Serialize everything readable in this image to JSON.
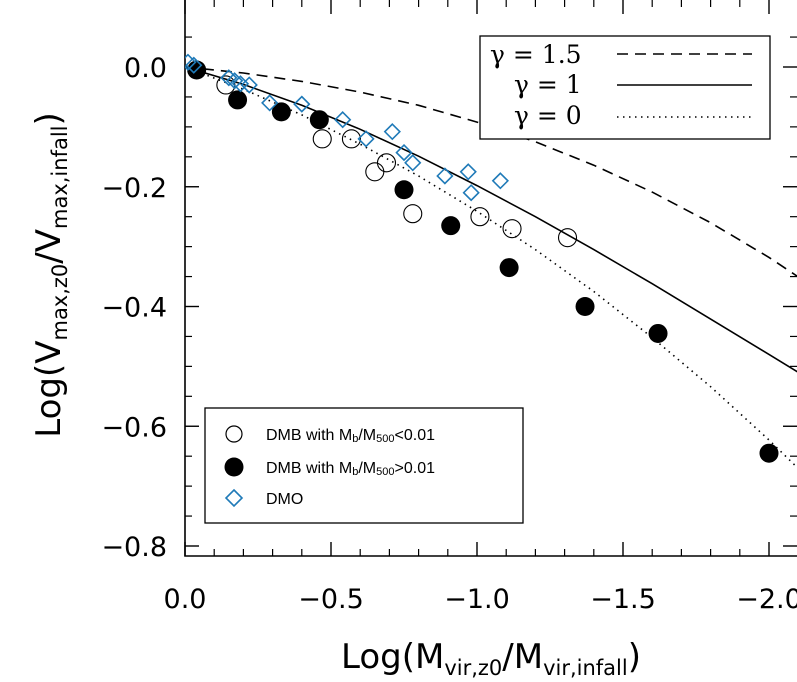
{
  "chart_data": {
    "type": "scatter",
    "xlabel": {
      "main": "Log(M",
      "sub1": "vir,z0",
      "mid": "/M",
      "sub2": "vir,infall",
      "end": ")"
    },
    "ylabel": {
      "main": "Log(V",
      "sub1": "max,z0",
      "mid": "/V",
      "sub2": "max,infall",
      "end": ")"
    },
    "xlim": [
      0.0,
      -2.2
    ],
    "ylim": [
      -0.83,
      0.1
    ],
    "x_ticks": [
      0.0,
      -0.5,
      -1.0,
      -1.5,
      -2.0
    ],
    "x_tick_labels": [
      "0.0",
      "−0.5",
      "−1.0",
      "−1.5",
      "−2.0"
    ],
    "y_ticks": [
      0.0,
      -0.2,
      -0.4,
      -0.6,
      -0.8
    ],
    "y_tick_labels": [
      "0.0",
      "−0.2",
      "−0.4",
      "−0.6",
      "−0.8"
    ],
    "lines": [
      {
        "legend": "γ  =  1.5",
        "style": "dashed",
        "x": [
          0.0,
          -0.2,
          -0.4,
          -0.6,
          -0.8,
          -1.0,
          -1.2,
          -1.4,
          -1.6,
          -1.8,
          -2.0,
          -2.2
        ],
        "y": [
          0.0,
          -0.01,
          -0.024,
          -0.042,
          -0.064,
          -0.092,
          -0.125,
          -0.164,
          -0.209,
          -0.26,
          -0.318,
          -0.383
        ]
      },
      {
        "legend": "γ  =  1",
        "style": "solid",
        "x": [
          0.0,
          -0.2,
          -0.4,
          -0.6,
          -0.8,
          -1.0,
          -1.2,
          -1.4,
          -1.6,
          -1.8,
          -2.0,
          -2.2
        ],
        "y": [
          0.0,
          -0.029,
          -0.064,
          -0.104,
          -0.149,
          -0.198,
          -0.25,
          -0.305,
          -0.362,
          -0.421,
          -0.48,
          -0.54
        ]
      },
      {
        "legend": "γ  =  0",
        "style": "dotted",
        "x": [
          0.0,
          -0.2,
          -0.4,
          -0.6,
          -0.8,
          -1.0,
          -1.2,
          -1.4,
          -1.6,
          -1.8,
          -2.0,
          -2.2
        ],
        "y": [
          0.0,
          -0.037,
          -0.08,
          -0.129,
          -0.182,
          -0.241,
          -0.305,
          -0.375,
          -0.452,
          -0.534,
          -0.623,
          -0.718
        ]
      }
    ],
    "series": [
      {
        "legend_pre": "DMB with M",
        "legend_sub1": "b",
        "legend_mid": "/M",
        "legend_sub2": "500",
        "legend_post": "<0.01",
        "marker": "open-circle",
        "points": [
          [
            -0.14,
            -0.03
          ],
          [
            -0.47,
            -0.12
          ],
          [
            -0.57,
            -0.12
          ],
          [
            -0.65,
            -0.175
          ],
          [
            -0.69,
            -0.16
          ],
          [
            -0.78,
            -0.245
          ],
          [
            -1.01,
            -0.25
          ],
          [
            -1.12,
            -0.27
          ],
          [
            -1.31,
            -0.285
          ]
        ]
      },
      {
        "legend_pre": "DMB with M",
        "legend_sub1": "b",
        "legend_mid": "/M",
        "legend_sub2": "500",
        "legend_post": ">0.01",
        "marker": "filled-circle",
        "points": [
          [
            -0.04,
            -0.005
          ],
          [
            -0.18,
            -0.055
          ],
          [
            -0.33,
            -0.075
          ],
          [
            -0.46,
            -0.088
          ],
          [
            -0.75,
            -0.205
          ],
          [
            -0.91,
            -0.265
          ],
          [
            -1.11,
            -0.335
          ],
          [
            -1.37,
            -0.4
          ],
          [
            -1.62,
            -0.445
          ],
          [
            -2.0,
            -0.645
          ]
        ]
      },
      {
        "legend": "DMO",
        "marker": "open-diamond",
        "color": "#1f7ab8",
        "points": [
          [
            -0.01,
            0.008
          ],
          [
            -0.03,
            0.003
          ],
          [
            -0.15,
            -0.018
          ],
          [
            -0.17,
            -0.023
          ],
          [
            -0.19,
            -0.028
          ],
          [
            -0.22,
            -0.03
          ],
          [
            -0.29,
            -0.06
          ],
          [
            -0.4,
            -0.062
          ],
          [
            -0.54,
            -0.088
          ],
          [
            -0.62,
            -0.12
          ],
          [
            -0.71,
            -0.108
          ],
          [
            -0.75,
            -0.143
          ],
          [
            -0.78,
            -0.16
          ],
          [
            -0.89,
            -0.182
          ],
          [
            -0.97,
            -0.175
          ],
          [
            -0.98,
            -0.21
          ],
          [
            -1.08,
            -0.19
          ]
        ]
      }
    ],
    "legend_top_position": "top-right",
    "legend_bottom_position": "bottom-left"
  }
}
